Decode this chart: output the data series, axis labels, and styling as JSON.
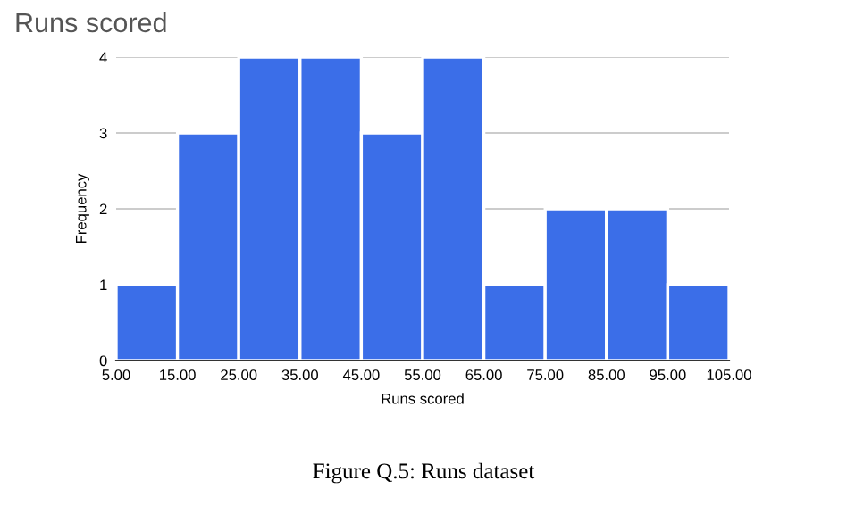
{
  "chart_data": {
    "type": "histogram",
    "title": "Runs scored",
    "xlabel": "Runs scored",
    "ylabel": "Frequency",
    "bins": [
      5,
      15,
      25,
      35,
      45,
      55,
      65,
      75,
      85,
      95,
      105
    ],
    "values": [
      1,
      3,
      4,
      4,
      3,
      4,
      1,
      2,
      2,
      1
    ],
    "color": "#3b6ee8",
    "xlim": [
      5,
      105
    ],
    "xticks": [
      {
        "value": 5,
        "label": "5.00"
      },
      {
        "value": 15,
        "label": "15.00"
      },
      {
        "value": 25,
        "label": "25.00"
      },
      {
        "value": 35,
        "label": "35.00"
      },
      {
        "value": 45,
        "label": "45.00"
      },
      {
        "value": 55,
        "label": "55.00"
      },
      {
        "value": 65,
        "label": "65.00"
      },
      {
        "value": 75,
        "label": "75.00"
      },
      {
        "value": 85,
        "label": "85.00"
      },
      {
        "value": 95,
        "label": "95.00"
      },
      {
        "value": 105,
        "label": "105.00"
      }
    ],
    "ylim": [
      0,
      4
    ],
    "yticks": [
      0,
      1,
      2,
      3,
      4
    ],
    "grid": "y",
    "annotations": [
      "Figure Q.5: Runs dataset"
    ]
  }
}
